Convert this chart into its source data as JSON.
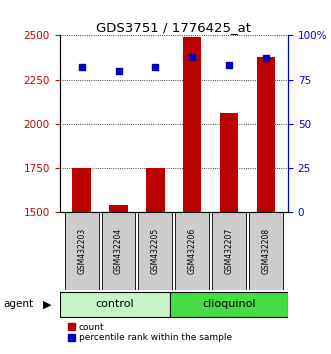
{
  "title": "GDS3751 / 1776425_at",
  "samples": [
    "GSM432203",
    "GSM432204",
    "GSM432205",
    "GSM432206",
    "GSM432207",
    "GSM432208"
  ],
  "counts": [
    1750,
    1543,
    1750,
    2490,
    2060,
    2380
  ],
  "percentiles": [
    82,
    80,
    82,
    88,
    83,
    87
  ],
  "ylim_left": [
    1500,
    2500
  ],
  "ylim_right": [
    0,
    100
  ],
  "yticks_left": [
    1500,
    1750,
    2000,
    2250,
    2500
  ],
  "yticks_right": [
    0,
    25,
    50,
    75,
    100
  ],
  "yticklabels_right": [
    "0",
    "25",
    "50",
    "75",
    "100%"
  ],
  "bar_bottom": 1500,
  "groups": [
    {
      "label": "control",
      "indices": [
        0,
        1,
        2
      ],
      "color": "#c8f5c8"
    },
    {
      "label": "clioquinol",
      "indices": [
        3,
        4,
        5
      ],
      "color": "#44dd44"
    }
  ],
  "bar_color": "#bb0000",
  "dot_color": "#0000bb",
  "bar_width": 0.5,
  "legend_items": [
    {
      "label": "count",
      "color": "#bb0000"
    },
    {
      "label": "percentile rank within the sample",
      "color": "#0000bb"
    }
  ],
  "agent_label": "agent",
  "left_axis_color": "#cc0000",
  "right_axis_color": "#0000cc"
}
